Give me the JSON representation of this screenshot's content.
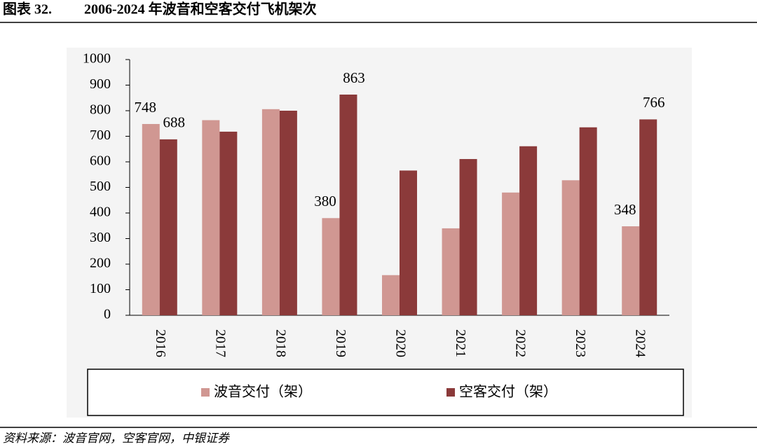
{
  "chart_data": {
    "type": "bar",
    "figure_label": "图表 32.",
    "title": "2006-2024 年波音和空客交付飞机架次",
    "source": "资料来源：波音官网，空客官网，中银证券",
    "categories": [
      "2016",
      "2017",
      "2018",
      "2019",
      "2020",
      "2021",
      "2022",
      "2023",
      "2024"
    ],
    "series": [
      {
        "name": "波音交付（架）",
        "color": "#d09792",
        "values": [
          748,
          763,
          806,
          380,
          157,
          340,
          480,
          528,
          348
        ],
        "value_labels": [
          "748",
          null,
          null,
          "380",
          null,
          null,
          null,
          null,
          "348"
        ]
      },
      {
        "name": "空客交付（架）",
        "color": "#8b3a3a",
        "values": [
          688,
          718,
          800,
          863,
          566,
          611,
          661,
          735,
          766
        ],
        "value_labels": [
          "688",
          null,
          null,
          "863",
          null,
          null,
          null,
          null,
          "766"
        ]
      }
    ],
    "ylim": [
      0,
      1000
    ],
    "yticks": [
      0,
      100,
      200,
      300,
      400,
      500,
      600,
      700,
      800,
      900,
      1000
    ],
    "grid": false,
    "legend": "bottom"
  }
}
